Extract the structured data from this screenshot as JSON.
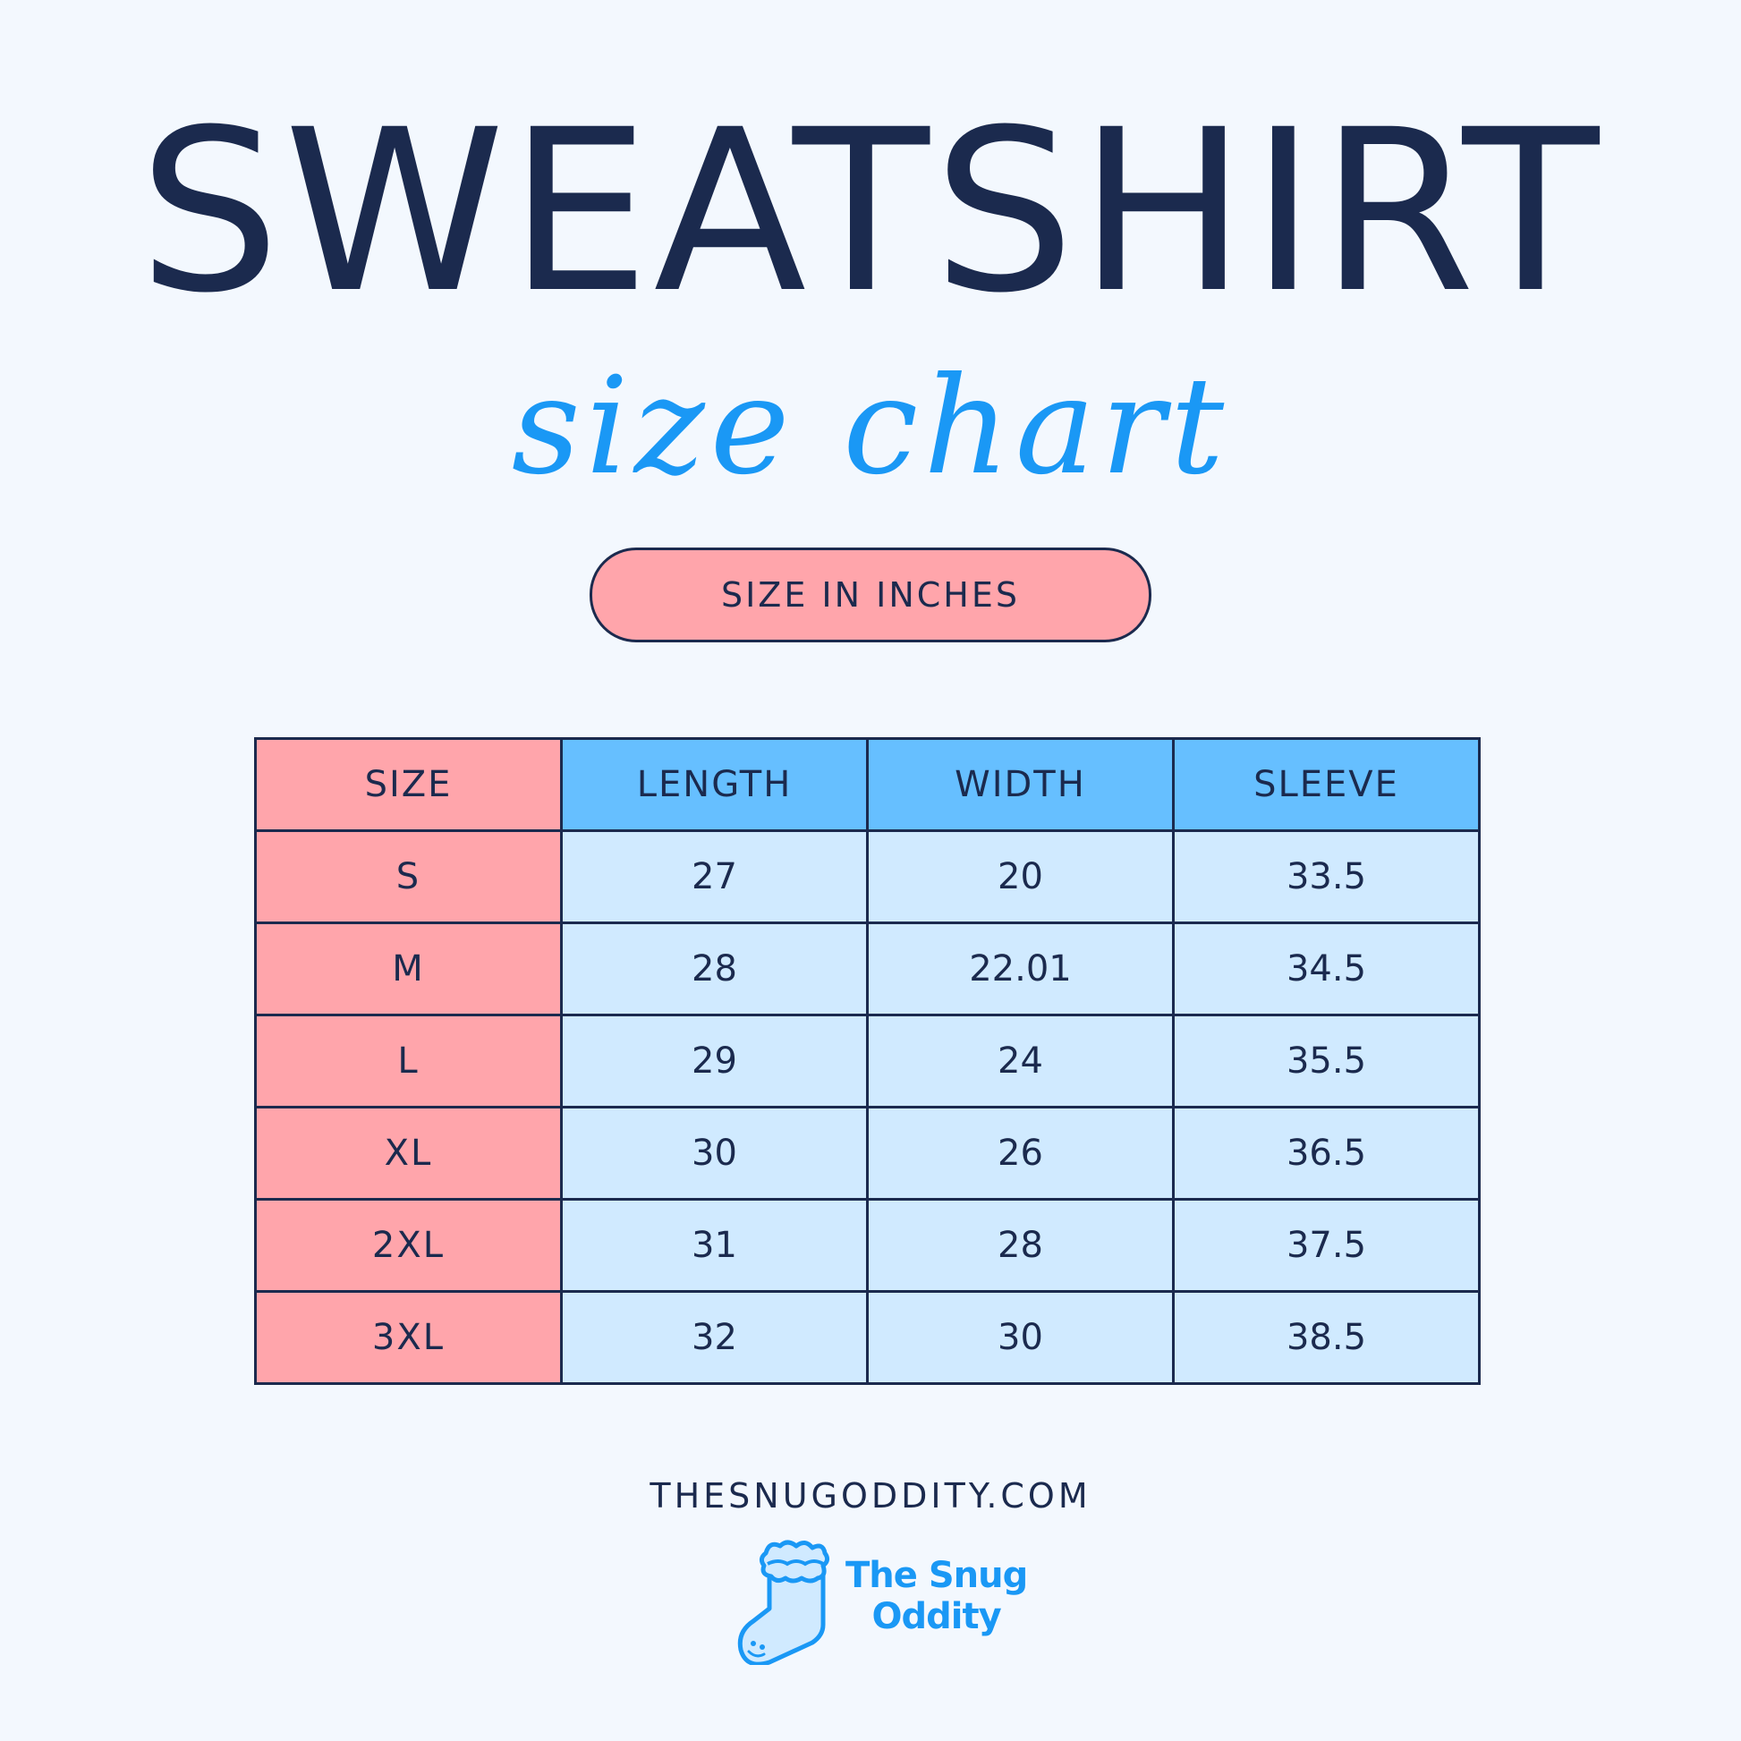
{
  "title": "SWEATSHIRT",
  "subtitle": "size chart",
  "unit_badge": "SIZE IN INCHES",
  "table": {
    "headers": [
      "SIZE",
      "LENGTH",
      "WIDTH",
      "SLEEVE"
    ],
    "rows": [
      [
        "S",
        "27",
        "20",
        "33.5"
      ],
      [
        "M",
        "28",
        "22.01",
        "34.5"
      ],
      [
        "L",
        "29",
        "24",
        "35.5"
      ],
      [
        "XL",
        "30",
        "26",
        "36.5"
      ],
      [
        "2XL",
        "31",
        "28",
        "37.5"
      ],
      [
        "3XL",
        "32",
        "30",
        "38.5"
      ]
    ]
  },
  "website": "THESNUGODDITY.COM",
  "logo": {
    "line1": "The Snug",
    "line2": "Oddity",
    "icon": "sock-icon"
  },
  "colors": {
    "navy": "#1b2a4e",
    "pink": "#ffa5ab",
    "blue_header": "#66bfff",
    "blue_cell": "#d0eaff",
    "accent": "#1a98f5",
    "background": "#f3f8fe"
  }
}
